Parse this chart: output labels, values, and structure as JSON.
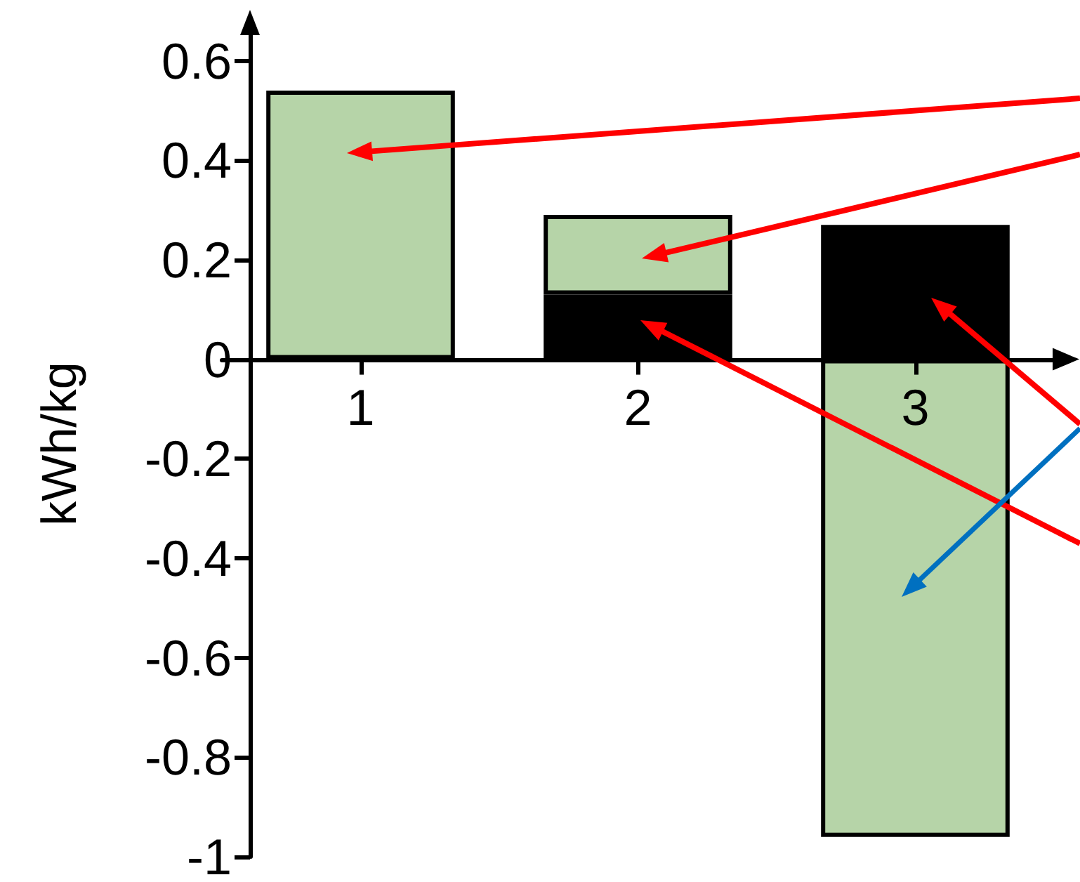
{
  "chart_data": {
    "type": "bar",
    "stacked": true,
    "ylabel": "kWh/kg",
    "categories": [
      "1",
      "2",
      "3"
    ],
    "series": [
      {
        "color": "#000000",
        "values": [
          null,
          0.13,
          0.27
        ]
      },
      {
        "color": "#b6d4a8",
        "values": [
          0.54,
          0.16,
          -0.96
        ]
      }
    ],
    "ylim": [
      -1,
      0.66
    ],
    "yticks": [
      -1,
      -0.8,
      -0.6,
      -0.4,
      -0.2,
      0,
      0.2,
      0.4,
      0.6
    ]
  }
}
